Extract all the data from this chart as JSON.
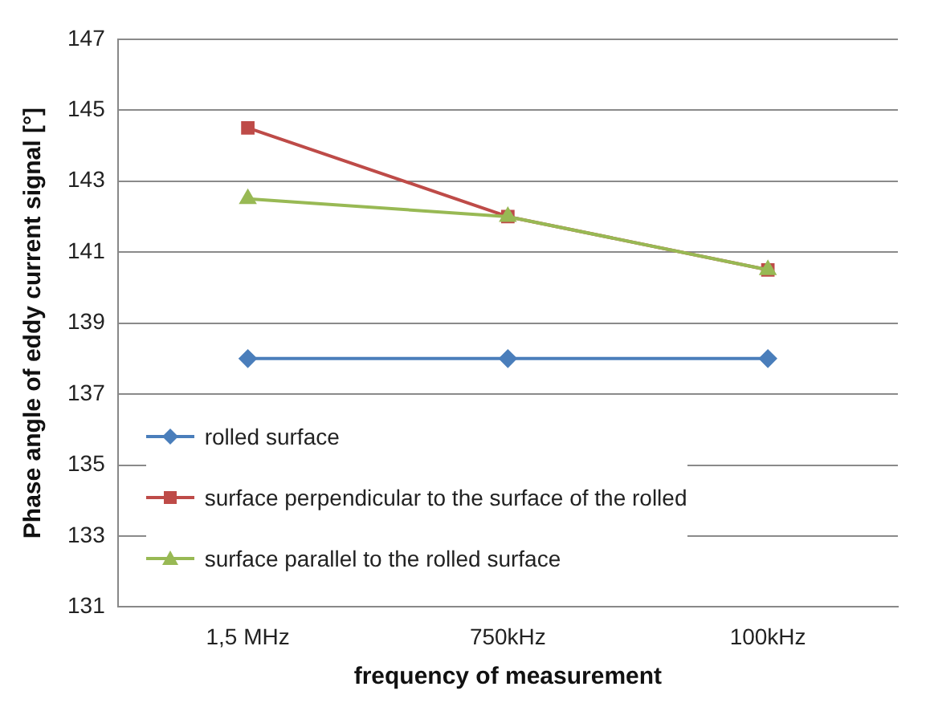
{
  "chart_data": {
    "type": "line",
    "xlabel": "frequency of measurement",
    "ylabel": "Phase angle of eddy current signal [°]",
    "categories": [
      "1,5 MHz",
      "750kHz",
      "100kHz"
    ],
    "series": [
      {
        "name": "rolled surface",
        "color": "#4a7ebb",
        "marker": "diamond",
        "values": [
          138,
          138,
          138
        ]
      },
      {
        "name": "surface perpendicular to the surface of the rolled",
        "color": "#be4b48",
        "marker": "square",
        "values": [
          144.5,
          142,
          140.5
        ]
      },
      {
        "name": "surface parallel to the rolled surface",
        "color": "#98b954",
        "marker": "triangle",
        "values": [
          142.5,
          142,
          140.5
        ]
      }
    ],
    "ylim": [
      131,
      147
    ],
    "yticks": [
      131,
      133,
      135,
      137,
      139,
      141,
      143,
      145,
      147
    ],
    "grid": "y",
    "legend": "bottom left"
  }
}
